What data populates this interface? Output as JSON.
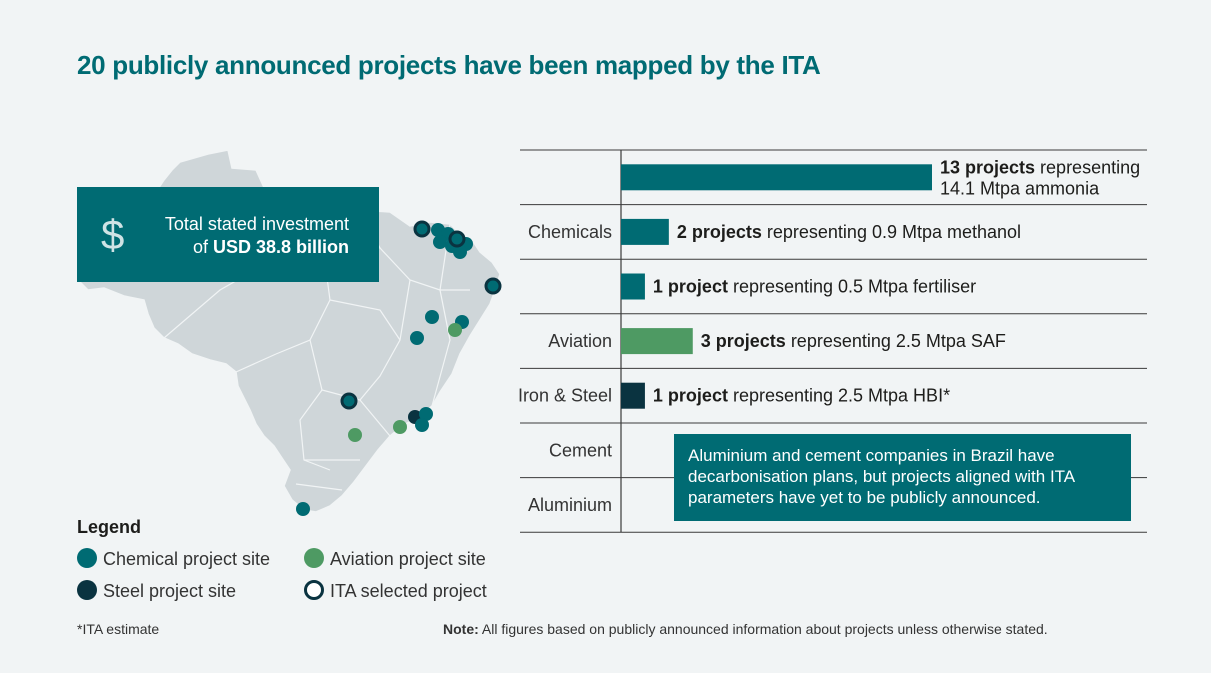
{
  "title": "20 publicly announced projects have been mapped by the ITA",
  "investment": {
    "icon": "dollar-icon",
    "symbol": "$",
    "line1": "Total stated investment",
    "line2_prefix": "of ",
    "line2_bold": "USD 38.8 billion"
  },
  "legend": {
    "title": "Legend",
    "items": [
      {
        "label": "Chemical project site",
        "color": "#006b73"
      },
      {
        "label": "Aviation project site",
        "color": "#4e9a63"
      },
      {
        "label": "Steel project site",
        "color": "#0a3340"
      },
      {
        "label": "ITA selected project",
        "color": "#0a3340"
      }
    ]
  },
  "footnote": "*ITA estimate",
  "note_label": "Note:",
  "note_text": " All figures based on publicly announced information about projects unless otherwise stated.",
  "callout": "Aluminium and cement companies in Brazil have decarbonisation plans, but projects aligned with ITA parameters have yet to be publicly announced.",
  "chart_data": {
    "type": "bar",
    "orientation": "horizontal",
    "categories": [
      "Chemicals",
      "Aviation",
      "Iron & Steel",
      "Cement",
      "Aluminium"
    ],
    "bars": [
      {
        "sector": "Chemicals",
        "projects": 13,
        "bold": "13 projects",
        "text": " representing",
        "text2": "14.1 Mtpa ammonia",
        "color": "#006b73"
      },
      {
        "sector": "Chemicals",
        "projects": 2,
        "bold": "2 projects",
        "text": " representing 0.9 Mtpa methanol",
        "color": "#006b73"
      },
      {
        "sector": "Chemicals",
        "projects": 1,
        "bold": "1 project",
        "text": " representing  0.5 Mtpa fertiliser",
        "color": "#006b73"
      },
      {
        "sector": "Aviation",
        "projects": 3,
        "bold": "3 projects",
        "text": " representing 2.5 Mtpa SAF",
        "color": "#4e9a63"
      },
      {
        "sector": "Iron & Steel",
        "projects": 1,
        "bold": "1 project",
        "text": " representing 2.5 Mtpa HBI*",
        "color": "#0a3340"
      }
    ]
  }
}
